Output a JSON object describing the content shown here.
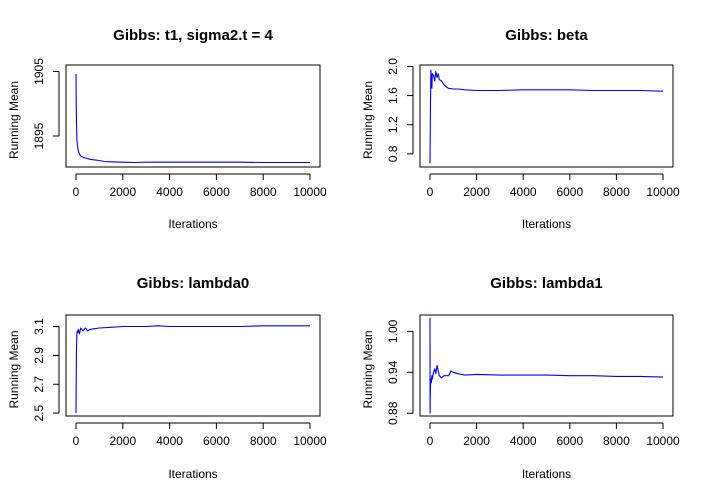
{
  "chart_data": [
    {
      "type": "line",
      "title": "Gibbs: t1, sigma2.t = 4",
      "xlabel": "Iterations",
      "ylabel": "Running Mean",
      "xlim": [
        0,
        10000
      ],
      "ylim": [
        1890.2,
        1906
      ],
      "xticks": [
        0,
        2000,
        4000,
        6000,
        8000,
        10000
      ],
      "yticks": [
        1895,
        1905
      ],
      "grid": false,
      "line_color": "#0000ff",
      "series": [
        {
          "x": [
            0,
            5,
            10,
            20,
            40,
            60,
            80,
            100,
            150,
            200,
            300,
            400,
            500,
            600,
            800,
            1000,
            1200,
            1500,
            2000,
            2500,
            3000,
            4000,
            5000,
            6000,
            7000,
            8000,
            9000,
            10000
          ],
          "y": [
            1904.6,
            1903.2,
            1900.5,
            1897.0,
            1894.5,
            1893.6,
            1893.1,
            1892.7,
            1892.2,
            1891.9,
            1891.7,
            1891.6,
            1891.5,
            1891.4,
            1891.3,
            1891.2,
            1891.05,
            1891.0,
            1890.95,
            1890.9,
            1890.95,
            1890.95,
            1890.95,
            1890.95,
            1890.95,
            1890.9,
            1890.9,
            1890.9
          ]
        }
      ]
    },
    {
      "type": "line",
      "title": "Gibbs: beta",
      "xlabel": "Iterations",
      "ylabel": "Running Mean",
      "xlim": [
        0,
        10000
      ],
      "ylim": [
        0.62,
        2.02
      ],
      "xticks": [
        0,
        2000,
        4000,
        6000,
        8000,
        10000
      ],
      "yticks": [
        0.8,
        1.2,
        1.6,
        2.0
      ],
      "grid": false,
      "line_color": "#0000ff",
      "series": [
        {
          "x": [
            0,
            20,
            40,
            60,
            80,
            100,
            150,
            200,
            250,
            300,
            350,
            400,
            500,
            600,
            700,
            800,
            1000,
            1200,
            1500,
            2000,
            2500,
            3000,
            4000,
            5000,
            6000,
            7000,
            8000,
            9000,
            10000
          ],
          "y": [
            0.67,
            1.5,
            1.95,
            1.8,
            1.7,
            1.9,
            1.88,
            1.8,
            1.93,
            1.85,
            1.9,
            1.82,
            1.8,
            1.75,
            1.72,
            1.7,
            1.69,
            1.69,
            1.68,
            1.67,
            1.67,
            1.67,
            1.68,
            1.68,
            1.68,
            1.67,
            1.67,
            1.67,
            1.66
          ]
        }
      ]
    },
    {
      "type": "line",
      "title": "Gibbs: lambda0",
      "xlabel": "Iterations",
      "ylabel": "Running Mean",
      "xlim": [
        0,
        10000
      ],
      "ylim": [
        2.48,
        3.18
      ],
      "xticks": [
        0,
        2000,
        4000,
        6000,
        8000,
        10000
      ],
      "yticks": [
        2.5,
        2.7,
        2.9,
        3.1
      ],
      "grid": false,
      "line_color": "#0000ff",
      "series": [
        {
          "x": [
            0,
            10,
            20,
            40,
            60,
            80,
            100,
            150,
            200,
            300,
            400,
            500,
            600,
            800,
            1000,
            1500,
            2000,
            3000,
            3500,
            4000,
            5000,
            6000,
            7000,
            8000,
            9000,
            10000
          ],
          "y": [
            2.5,
            2.7,
            2.95,
            3.05,
            3.07,
            3.06,
            3.08,
            3.05,
            3.09,
            3.07,
            3.09,
            3.07,
            3.08,
            3.085,
            3.09,
            3.095,
            3.1,
            3.1,
            3.105,
            3.1,
            3.1,
            3.1,
            3.1,
            3.105,
            3.105,
            3.105
          ]
        }
      ]
    },
    {
      "type": "line",
      "title": "Gibbs: lambda1",
      "xlabel": "Iterations",
      "ylabel": "Running Mean",
      "xlim": [
        0,
        10000
      ],
      "ylim": [
        0.876,
        1.024
      ],
      "xticks": [
        0,
        2000,
        4000,
        6000,
        8000,
        10000
      ],
      "yticks": [
        0.88,
        0.94,
        1.0
      ],
      "grid": false,
      "line_color": "#0000ff",
      "series": [
        {
          "x": [
            0,
            5,
            10,
            20,
            40,
            60,
            80,
            100,
            150,
            200,
            250,
            300,
            400,
            500,
            600,
            800,
            900,
            1000,
            1200,
            1500,
            2000,
            3000,
            4000,
            5000,
            6000,
            7000,
            8000,
            9000,
            10000
          ],
          "y": [
            1.02,
            0.88,
            0.9,
            0.92,
            0.93,
            0.925,
            0.935,
            0.93,
            0.94,
            0.945,
            0.938,
            0.95,
            0.935,
            0.932,
            0.935,
            0.935,
            0.942,
            0.94,
            0.938,
            0.936,
            0.937,
            0.936,
            0.936,
            0.936,
            0.935,
            0.935,
            0.934,
            0.934,
            0.933
          ]
        }
      ]
    }
  ]
}
